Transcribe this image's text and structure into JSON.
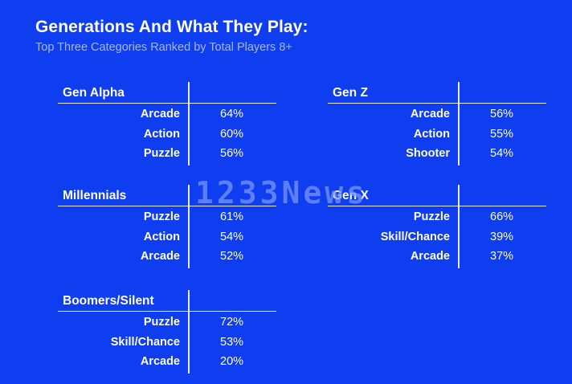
{
  "chart_data": {
    "type": "table",
    "title": "Generations And What They Play:",
    "subtitle": "Top Three Categories Ranked by Total Players 8+",
    "groups": [
      {
        "name": "Gen Alpha",
        "rows": [
          {
            "category": "Arcade",
            "value": "64%"
          },
          {
            "category": "Action",
            "value": "60%"
          },
          {
            "category": "Puzzle",
            "value": "56%"
          }
        ]
      },
      {
        "name": "Gen Z",
        "rows": [
          {
            "category": "Arcade",
            "value": "56%"
          },
          {
            "category": "Action",
            "value": "55%"
          },
          {
            "category": "Shooter",
            "value": "54%"
          }
        ]
      },
      {
        "name": "Millennials",
        "rows": [
          {
            "category": "Puzzle",
            "value": "61%"
          },
          {
            "category": "Action",
            "value": "54%"
          },
          {
            "category": "Arcade",
            "value": "52%"
          }
        ]
      },
      {
        "name": "Gen X",
        "rows": [
          {
            "category": "Puzzle",
            "value": "66%"
          },
          {
            "category": "Skill/Chance",
            "value": "39%"
          },
          {
            "category": "Arcade",
            "value": "37%"
          }
        ]
      },
      {
        "name": "Boomers/Silent",
        "rows": [
          {
            "category": "Puzzle",
            "value": "72%"
          },
          {
            "category": "Skill/Chance",
            "value": "53%"
          },
          {
            "category": "Arcade",
            "value": "20%"
          }
        ]
      }
    ]
  },
  "watermark": "1233News",
  "colors": {
    "background": "#0f3df0",
    "text": "#ffffff",
    "subtitle": "#a8b8f8",
    "rule": "#e6ebff"
  }
}
